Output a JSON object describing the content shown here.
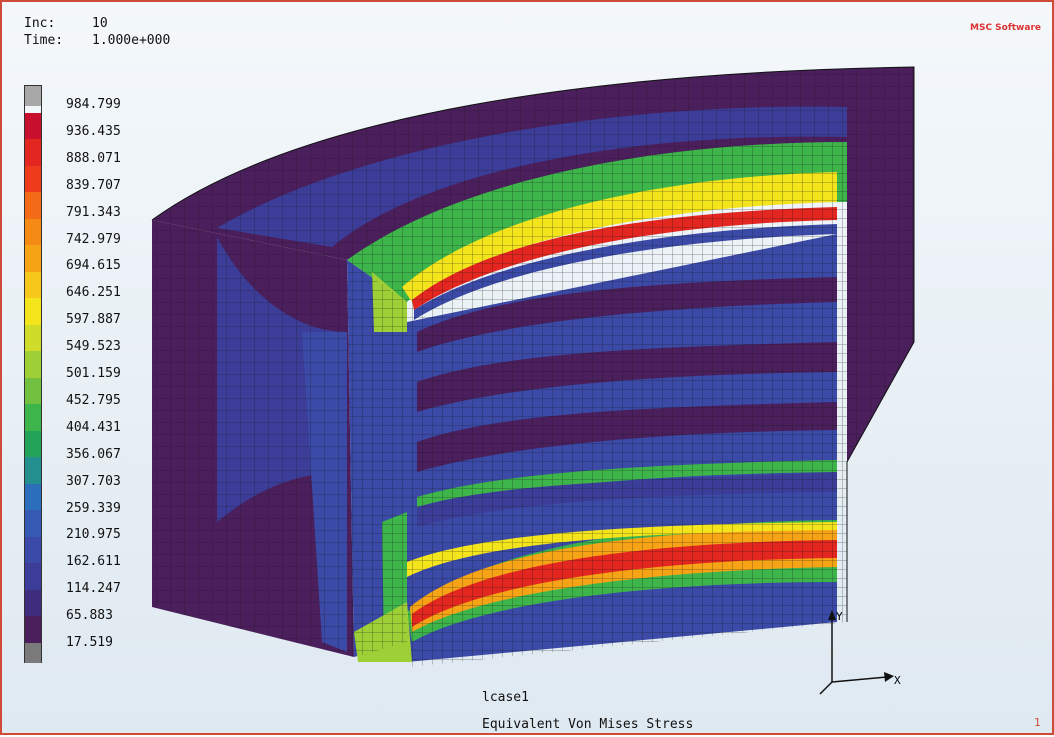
{
  "header": {
    "inc_label": "Inc:",
    "inc_value": "10",
    "time_label": "Time:",
    "time_value": "1.000e+000"
  },
  "logo_text": "MSC Software",
  "legend": {
    "values": [
      "984.799",
      "936.435",
      "888.071",
      "839.707",
      "791.343",
      "742.979",
      "694.615",
      "646.251",
      "597.887",
      "549.523",
      "501.159",
      "452.795",
      "404.431",
      "356.067",
      "307.703",
      "259.339",
      "210.975",
      "162.611",
      "114.247",
      "65.883",
      "17.519"
    ],
    "colors": [
      "#a8a8a8",
      "#c8102e",
      "#e3261f",
      "#ee3b1c",
      "#f36a17",
      "#f58b15",
      "#f6a416",
      "#f7c81a",
      "#f3e41c",
      "#cfdc2a",
      "#9fcf36",
      "#72c040",
      "#3db54a",
      "#23a35a",
      "#23908f",
      "#2b6fba",
      "#3659b4",
      "#3a4aa6",
      "#3c3d98",
      "#3f2c7d",
      "#4a1f5c"
    ],
    "bottom_color": "#7a7a7a"
  },
  "footer": {
    "loadcase": "lcase1",
    "result": "Equivalent Von Mises Stress"
  },
  "axes": {
    "x": "X",
    "y": "Y"
  },
  "page_number": "1"
}
